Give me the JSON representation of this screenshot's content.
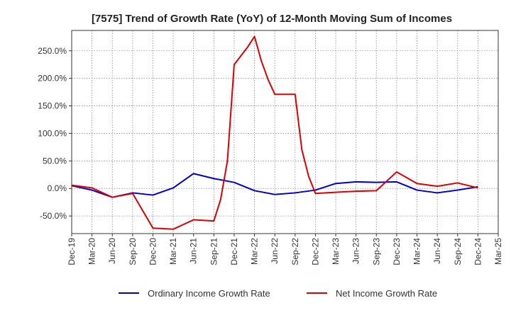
{
  "chart_data": {
    "type": "line",
    "title": "[7575]  Trend of Growth Rate (YoY) of 12-Month Moving Sum of Incomes",
    "xlabel": "",
    "ylabel": "",
    "x_ticks": [
      "Dec-19",
      "Mar-20",
      "Jun-20",
      "Sep-20",
      "Dec-20",
      "Mar-21",
      "Jun-21",
      "Sep-21",
      "Dec-21",
      "Mar-22",
      "Jun-22",
      "Sep-22",
      "Dec-22",
      "Mar-23",
      "Jun-23",
      "Sep-23",
      "Dec-23",
      "Mar-24",
      "Jun-24",
      "Sep-24",
      "Dec-24",
      "Mar-25"
    ],
    "y_ticks": [
      "250.0%",
      "200.0%",
      "150.0%",
      "100.0%",
      "50.0%",
      "0.0%",
      "-50.0%"
    ],
    "y_tick_values": [
      250,
      200,
      150,
      100,
      50,
      0,
      -50
    ],
    "ylim": [
      -82,
      287
    ],
    "xlim": [
      0,
      63
    ],
    "grid": true,
    "legend_position": "bottom",
    "series": [
      {
        "name": "Ordinary Income Growth Rate",
        "color": "#0000cc",
        "points": [
          [
            0,
            5
          ],
          [
            3,
            -3
          ],
          [
            6,
            -16
          ],
          [
            9,
            -8
          ],
          [
            12,
            -12
          ],
          [
            15,
            1
          ],
          [
            18,
            27
          ],
          [
            21,
            18
          ],
          [
            24,
            11
          ],
          [
            27,
            -4
          ],
          [
            30,
            -11
          ],
          [
            33,
            -8
          ],
          [
            36,
            -3
          ],
          [
            39,
            9
          ],
          [
            42,
            12
          ],
          [
            45,
            11
          ],
          [
            48,
            12
          ],
          [
            51,
            -3
          ],
          [
            54,
            -8
          ],
          [
            57,
            -3
          ],
          [
            60,
            3
          ]
        ]
      },
      {
        "name": "Net Income Growth Rate",
        "color": "#dd0000",
        "points": [
          [
            0,
            6
          ],
          [
            3,
            1
          ],
          [
            6,
            -16
          ],
          [
            9,
            -9
          ],
          [
            12,
            -72
          ],
          [
            15,
            -74
          ],
          [
            18,
            -57
          ],
          [
            21,
            -59
          ],
          [
            22,
            -20
          ],
          [
            23,
            50
          ],
          [
            24,
            225
          ],
          [
            26,
            257
          ],
          [
            27,
            276
          ],
          [
            28,
            232
          ],
          [
            29,
            198
          ],
          [
            30,
            171
          ],
          [
            33,
            171
          ],
          [
            34,
            70
          ],
          [
            35,
            22
          ],
          [
            36,
            -9
          ],
          [
            39,
            -7
          ],
          [
            42,
            -5
          ],
          [
            45,
            -4
          ],
          [
            48,
            30
          ],
          [
            51,
            9
          ],
          [
            54,
            4
          ],
          [
            57,
            10
          ],
          [
            60,
            1
          ]
        ]
      }
    ]
  }
}
